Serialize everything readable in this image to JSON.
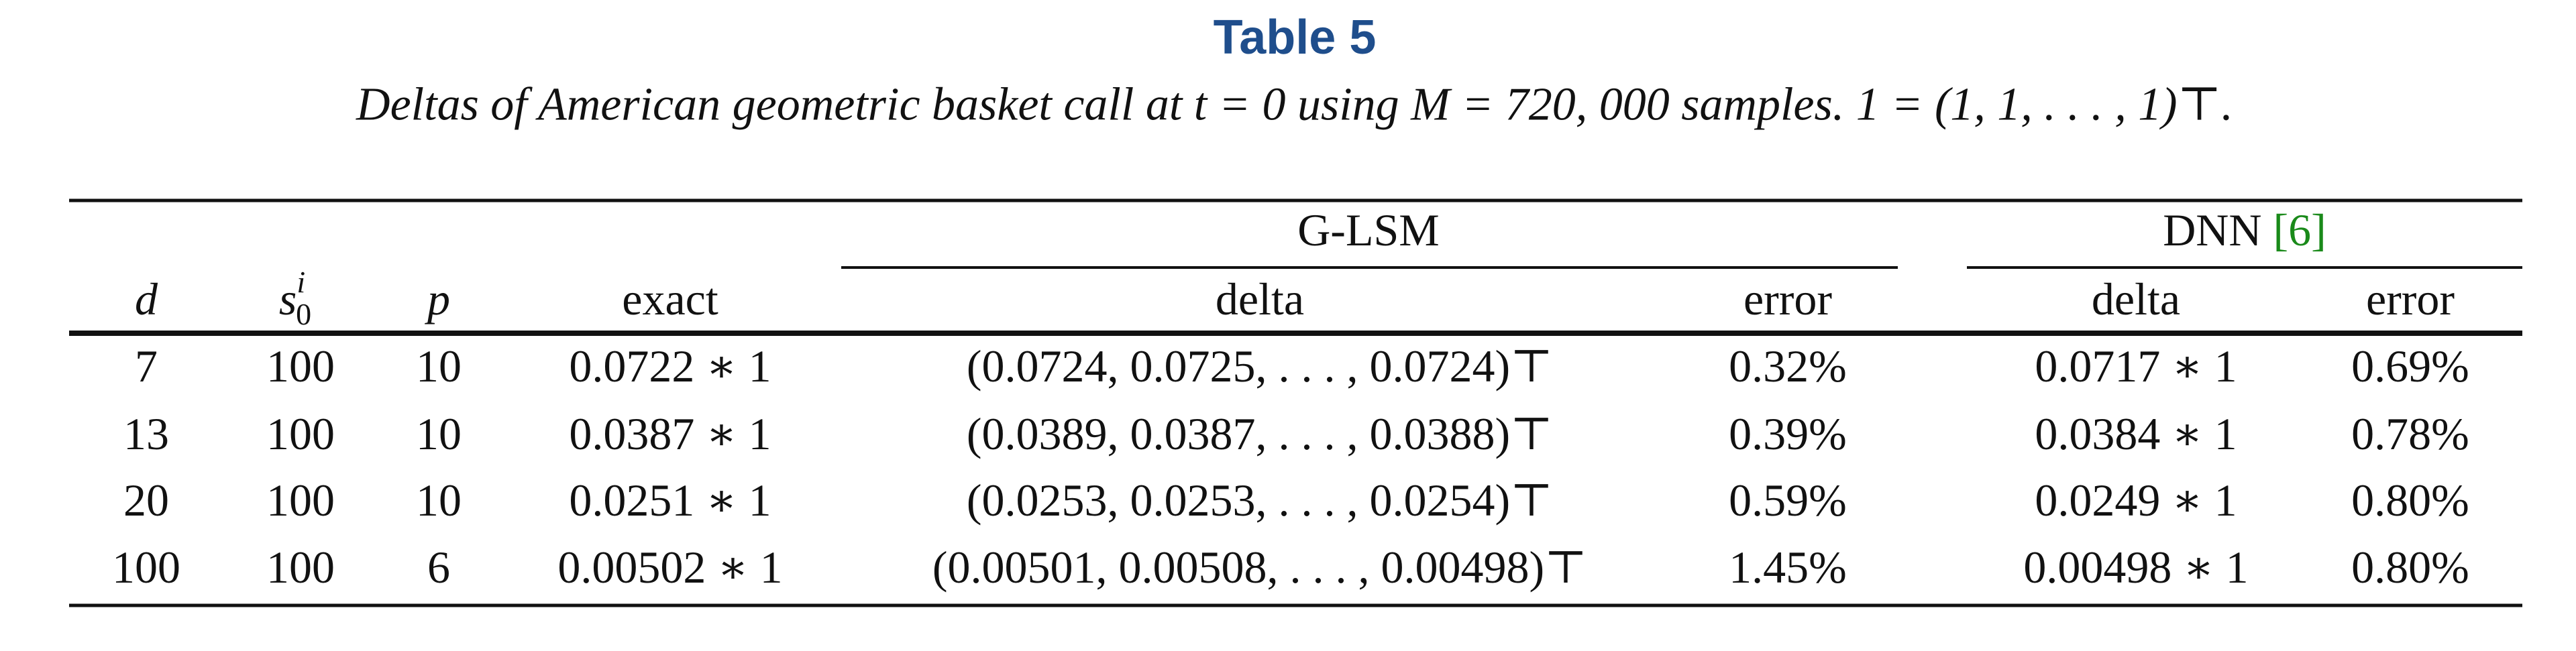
{
  "title": "Table 5",
  "caption": "Deltas of American geometric basket call at t = 0 using M = 720, 000 samples. 1 = (1, 1, . . . , 1)⊤.",
  "table": {
    "groups": [
      {
        "label": "G-LSM"
      },
      {
        "label": "DNN",
        "cite": "[6]"
      }
    ],
    "header": [
      "d",
      {
        "base": "s",
        "sub": "0",
        "sup": "i"
      },
      "p",
      "exact",
      "delta",
      "error",
      "delta",
      "error"
    ],
    "rows": [
      [
        "7",
        "100",
        "10",
        "0.0722 ∗ 1",
        "(0.0724, 0.0725, . . . , 0.0724)⊤",
        "0.32%",
        "0.0717 ∗ 1",
        "0.69%"
      ],
      [
        "13",
        "100",
        "10",
        "0.0387 ∗ 1",
        "(0.0389, 0.0387, . . . , 0.0388)⊤",
        "0.39%",
        "0.0384 ∗ 1",
        "0.78%"
      ],
      [
        "20",
        "100",
        "10",
        "0.0251 ∗ 1",
        "(0.0253, 0.0253, . . . , 0.0254)⊤",
        "0.59%",
        "0.0249 ∗ 1",
        "0.80%"
      ],
      [
        "100",
        "100",
        "6",
        "0.00502 ∗ 1",
        "(0.00501, 0.00508, . . . , 0.00498)⊤",
        "1.45%",
        "0.00498 ∗ 1",
        "0.80%"
      ]
    ]
  }
}
